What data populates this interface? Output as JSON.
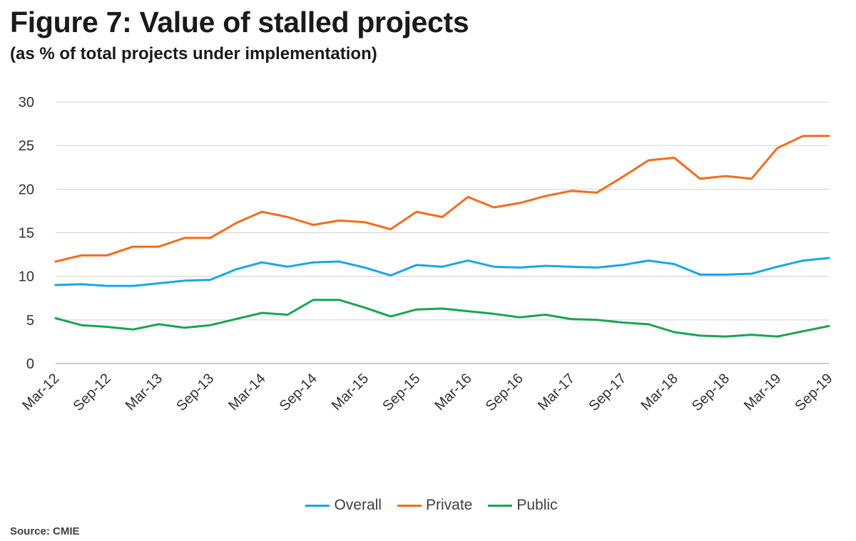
{
  "title": "Figure 7: Value of stalled projects",
  "subtitle": "(as % of total projects under implementation)",
  "source": "Source: CMIE",
  "chart_data": {
    "type": "line",
    "x": [
      "Mar-12",
      "Jun-12",
      "Sep-12",
      "Dec-12",
      "Mar-13",
      "Jun-13",
      "Sep-13",
      "Dec-13",
      "Mar-14",
      "Jun-14",
      "Sep-14",
      "Dec-14",
      "Mar-15",
      "Jun-15",
      "Sep-15",
      "Dec-15",
      "Mar-16",
      "Jun-16",
      "Sep-16",
      "Dec-16",
      "Mar-17",
      "Jun-17",
      "Sep-17",
      "Dec-17",
      "Mar-18",
      "Jun-18",
      "Sep-18",
      "Dec-18",
      "Mar-19",
      "Jun-19",
      "Sep-19"
    ],
    "x_tick_labels": [
      "Mar-12",
      "Sep-12",
      "Mar-13",
      "Sep-13",
      "Mar-14",
      "Sep-14",
      "Mar-15",
      "Sep-15",
      "Mar-16",
      "Sep-16",
      "Mar-17",
      "Sep-17",
      "Mar-18",
      "Sep-18",
      "Mar-19",
      "Sep-19"
    ],
    "y_ticks": [
      0,
      5,
      10,
      15,
      20,
      25,
      30
    ],
    "ylim": [
      0,
      30
    ],
    "grid": true,
    "legend_position": "bottom",
    "series": [
      {
        "name": "Overall",
        "color": "#1aa6e8",
        "values": [
          9.0,
          9.1,
          8.9,
          8.9,
          9.2,
          9.5,
          9.6,
          10.8,
          11.6,
          11.1,
          11.6,
          11.7,
          11.0,
          10.1,
          11.3,
          11.1,
          11.8,
          11.1,
          11.0,
          11.2,
          11.1,
          11.0,
          11.3,
          11.8,
          11.4,
          10.2,
          10.2,
          10.3,
          11.1,
          11.8,
          12.1
        ]
      },
      {
        "name": "Private",
        "color": "#f46c19",
        "values": [
          11.7,
          12.4,
          12.4,
          13.4,
          13.4,
          14.4,
          14.4,
          16.1,
          17.4,
          16.8,
          15.9,
          16.4,
          16.2,
          15.4,
          17.4,
          16.8,
          19.1,
          17.9,
          18.4,
          19.2,
          19.8,
          19.6,
          21.4,
          23.3,
          23.6,
          21.2,
          21.5,
          21.2,
          24.7,
          26.1,
          26.1
        ]
      },
      {
        "name": "Public",
        "color": "#17a650",
        "values": [
          5.2,
          4.4,
          4.2,
          3.9,
          4.5,
          4.1,
          4.4,
          5.1,
          5.8,
          5.6,
          7.3,
          7.3,
          6.4,
          5.4,
          6.2,
          6.3,
          6.0,
          5.7,
          5.3,
          5.6,
          5.1,
          5.0,
          4.7,
          4.5,
          3.6,
          3.2,
          3.1,
          3.3,
          3.1,
          3.7,
          4.3
        ]
      }
    ]
  }
}
